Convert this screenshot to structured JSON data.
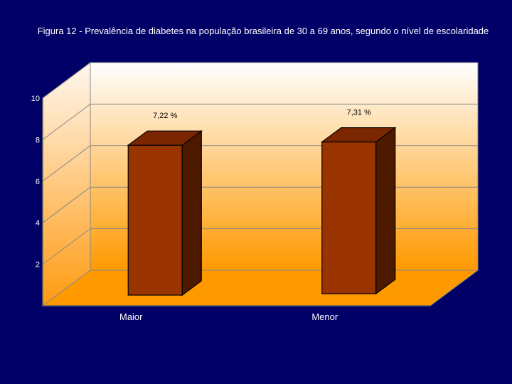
{
  "chart_data": {
    "type": "bar",
    "title": "Figura 12 - Prevalência de diabetes na população brasileira de 30 a 69 anos, segundo o nível de escolaridade",
    "categories": [
      "Maior",
      "Menor"
    ],
    "values": [
      7.22,
      7.31
    ],
    "data_labels": [
      "7,22 %",
      "7,31 %"
    ],
    "xlabel": "",
    "ylabel": "",
    "ylim": [
      0,
      10
    ],
    "yticks": [
      2,
      4,
      6,
      8,
      10
    ],
    "grid": true,
    "style": "3d",
    "colors": {
      "bar_front": "#993300",
      "bar_side": "#4d1a00",
      "bar_top": "#7a2600",
      "page_background": "#000066",
      "wall_top": "#ffffff",
      "wall_bottom": "#ff9900",
      "floor": "#ff9900"
    }
  }
}
